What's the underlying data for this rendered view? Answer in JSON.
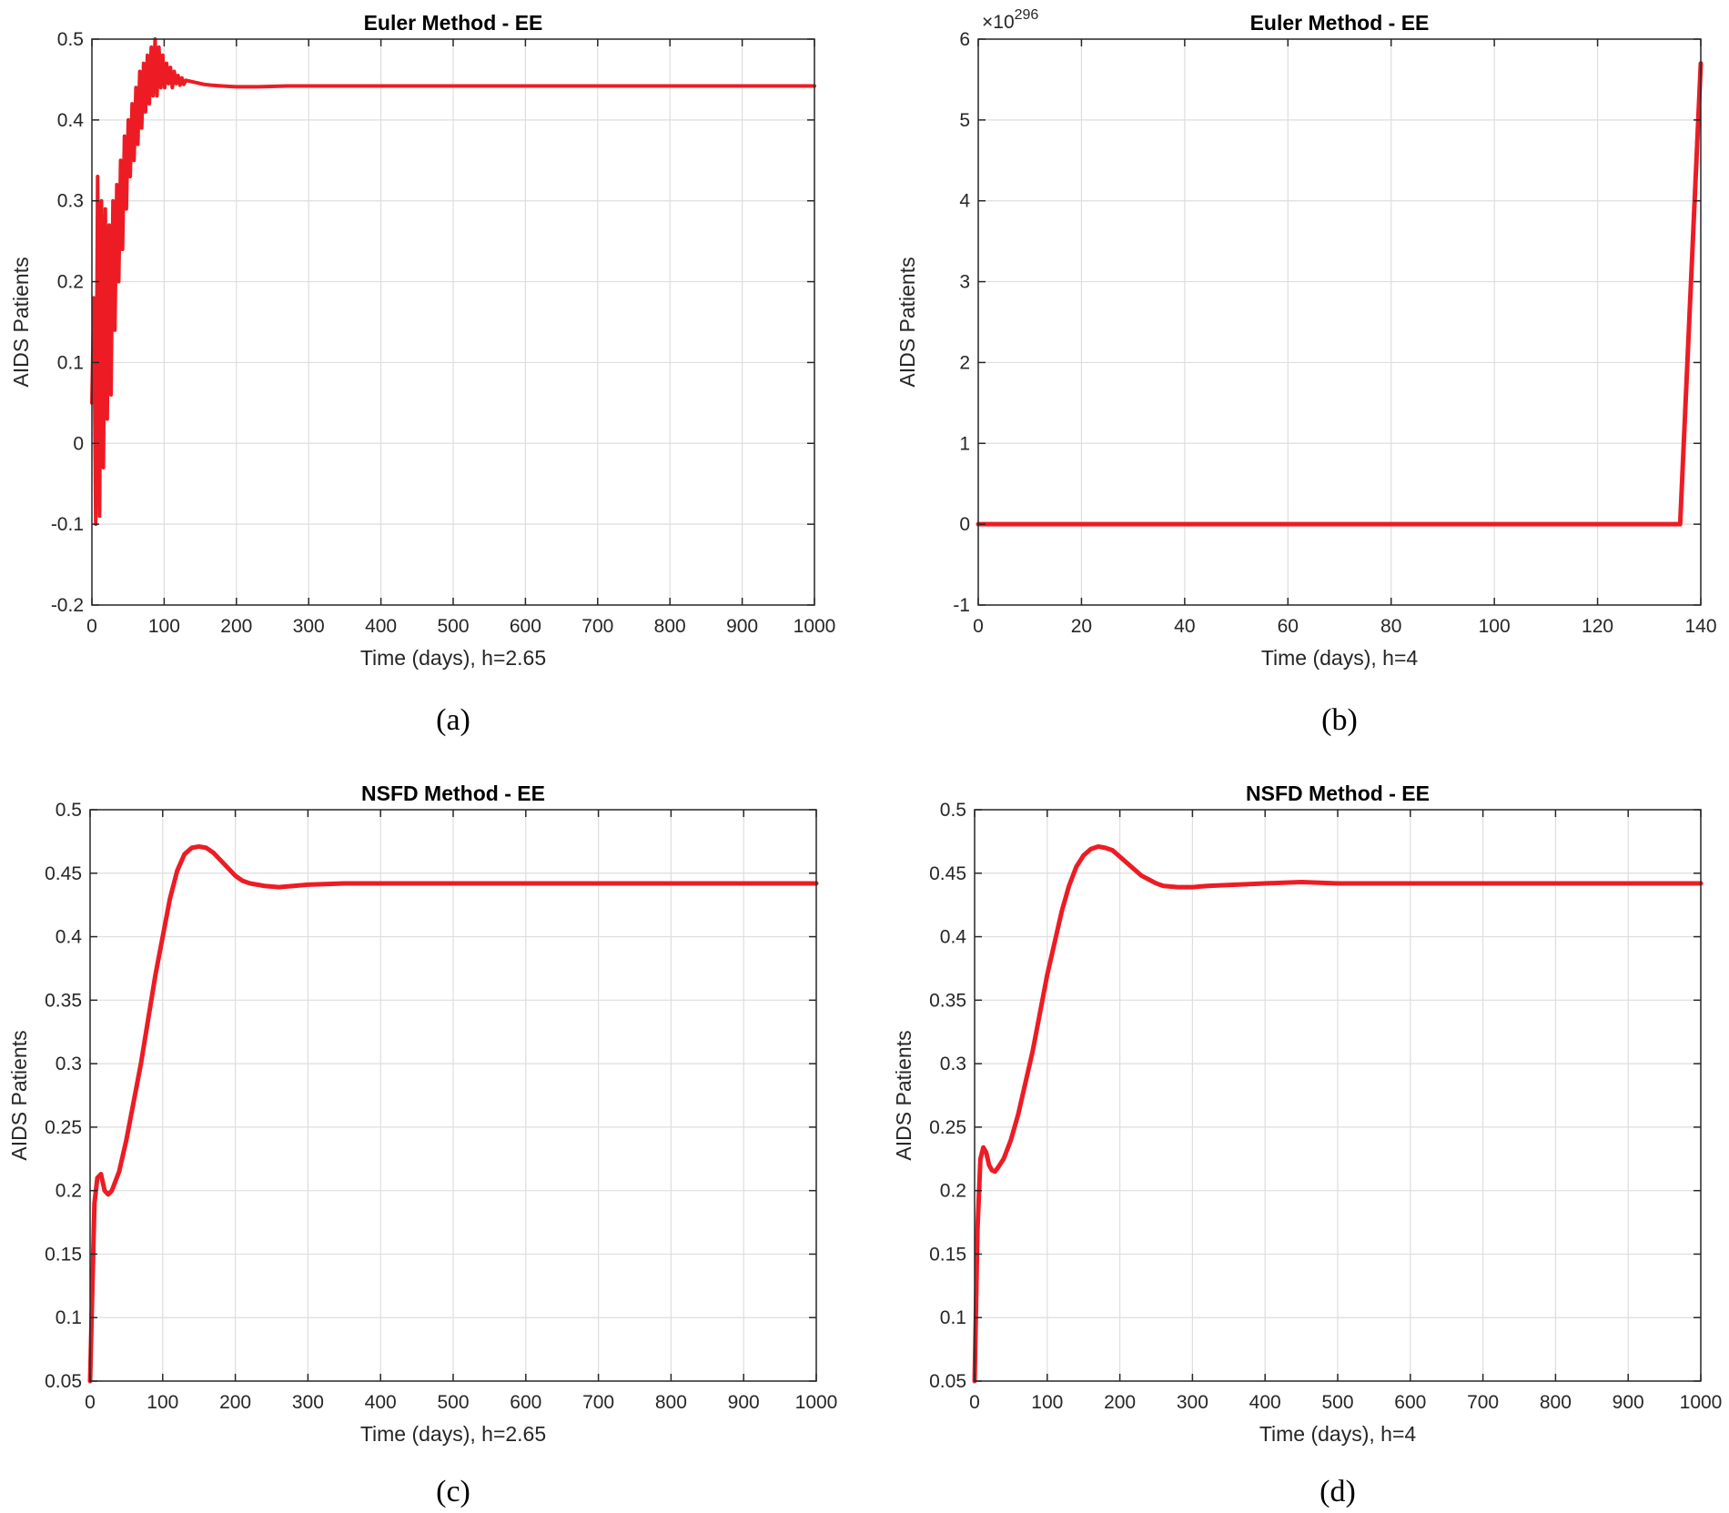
{
  "chart_data": [
    {
      "type": "line",
      "caption": "(a)",
      "title": "Euler Method - EE",
      "xlabel": "Time (days), h=2.65",
      "ylabel": "AIDS Patients",
      "xlim": [
        0,
        1000
      ],
      "ylim": [
        -0.2,
        0.5
      ],
      "xticks": [
        0,
        100,
        200,
        300,
        400,
        500,
        600,
        700,
        800,
        900,
        1000
      ],
      "yticks": [
        -0.2,
        -0.1,
        0,
        0.1,
        0.2,
        0.3,
        0.4,
        0.5
      ],
      "grid": true,
      "color": "#ed1c24",
      "series": [
        {
          "x": [
            0,
            2.65,
            5.3,
            7.95,
            10.6,
            13.25,
            15.9,
            18.55,
            21.2,
            23.85,
            26.5,
            29.15,
            31.8,
            34.45,
            37.1,
            39.75,
            42.4,
            45.05,
            47.7,
            50.35,
            53,
            55.65,
            58.3,
            60.95,
            63.6,
            66.25,
            68.9,
            71.55,
            74.2,
            76.85,
            79.5,
            82.15,
            84.8,
            87.45,
            90.1,
            92.75,
            95.4,
            98.05,
            100.7,
            103.35,
            106,
            108.65,
            111.3,
            113.95,
            116.6,
            119.25,
            121.9,
            124.55,
            127.2,
            129.85,
            135,
            145,
            155,
            165,
            180,
            200,
            230,
            270,
            320,
            400,
            500,
            600,
            700,
            800,
            900,
            1000
          ],
          "y": [
            0.05,
            0.18,
            -0.1,
            0.33,
            -0.09,
            0.3,
            -0.03,
            0.29,
            0.03,
            0.27,
            0.06,
            0.3,
            0.14,
            0.32,
            0.2,
            0.35,
            0.24,
            0.38,
            0.29,
            0.4,
            0.33,
            0.42,
            0.35,
            0.44,
            0.37,
            0.46,
            0.39,
            0.47,
            0.41,
            0.48,
            0.42,
            0.49,
            0.43,
            0.5,
            0.43,
            0.49,
            0.44,
            0.48,
            0.44,
            0.47,
            0.445,
            0.465,
            0.44,
            0.46,
            0.445,
            0.455,
            0.443,
            0.452,
            0.444,
            0.449,
            0.448,
            0.446,
            0.444,
            0.443,
            0.442,
            0.441,
            0.441,
            0.442,
            0.442,
            0.442,
            0.442,
            0.442,
            0.442,
            0.442,
            0.442,
            0.442
          ]
        }
      ]
    },
    {
      "type": "line",
      "caption": "(b)",
      "title": "Euler Method - EE",
      "xlabel": "Time (days), h=4",
      "ylabel": "AIDS Patients",
      "exponent_label": "×10",
      "exponent_power": "296",
      "xlim": [
        0,
        140
      ],
      "ylim": [
        -1,
        6
      ],
      "xticks": [
        0,
        20,
        40,
        60,
        80,
        100,
        120,
        140
      ],
      "yticks": [
        -1,
        0,
        1,
        2,
        3,
        4,
        5,
        6
      ],
      "grid": true,
      "color": "#ed1c24",
      "series": [
        {
          "x": [
            0,
            20,
            40,
            60,
            80,
            100,
            120,
            136,
            140
          ],
          "y": [
            0,
            0,
            0,
            0,
            0,
            0,
            0,
            0,
            5.7
          ]
        }
      ]
    },
    {
      "type": "line",
      "caption": "(c)",
      "title": "NSFD Method - EE",
      "xlabel": "Time (days), h=2.65",
      "ylabel": "AIDS Patients",
      "xlim": [
        0,
        1000
      ],
      "ylim": [
        0.05,
        0.5
      ],
      "xticks": [
        0,
        100,
        200,
        300,
        400,
        500,
        600,
        700,
        800,
        900,
        1000
      ],
      "yticks": [
        0.05,
        0.1,
        0.15,
        0.2,
        0.25,
        0.3,
        0.35,
        0.4,
        0.45,
        0.5
      ],
      "grid": true,
      "color": "#ed1c24",
      "series": [
        {
          "x": [
            0,
            3,
            6,
            10,
            15,
            20,
            25,
            30,
            40,
            50,
            60,
            70,
            80,
            90,
            100,
            110,
            120,
            130,
            140,
            150,
            160,
            170,
            180,
            190,
            200,
            210,
            220,
            240,
            260,
            280,
            300,
            350,
            400,
            450,
            500,
            600,
            700,
            800,
            900,
            1000
          ],
          "y": [
            0.05,
            0.12,
            0.19,
            0.21,
            0.213,
            0.2,
            0.197,
            0.2,
            0.215,
            0.24,
            0.27,
            0.3,
            0.335,
            0.37,
            0.4,
            0.43,
            0.452,
            0.465,
            0.47,
            0.471,
            0.47,
            0.466,
            0.46,
            0.454,
            0.448,
            0.444,
            0.442,
            0.44,
            0.439,
            0.44,
            0.441,
            0.442,
            0.442,
            0.442,
            0.442,
            0.442,
            0.442,
            0.442,
            0.442,
            0.442
          ]
        }
      ]
    },
    {
      "type": "line",
      "caption": "(d)",
      "title": "NSFD Method - EE",
      "xlabel": "Time (days), h=4",
      "ylabel": "AIDS Patients",
      "xlim": [
        0,
        1000
      ],
      "ylim": [
        0.05,
        0.5
      ],
      "xticks": [
        0,
        100,
        200,
        300,
        400,
        500,
        600,
        700,
        800,
        900,
        1000
      ],
      "yticks": [
        0.05,
        0.1,
        0.15,
        0.2,
        0.25,
        0.3,
        0.35,
        0.4,
        0.45,
        0.5
      ],
      "grid": true,
      "color": "#ed1c24",
      "series": [
        {
          "x": [
            0,
            4,
            8,
            12,
            16,
            20,
            24,
            28,
            32,
            40,
            50,
            60,
            70,
            80,
            90,
            100,
            110,
            120,
            130,
            140,
            150,
            160,
            170,
            180,
            190,
            200,
            210,
            220,
            230,
            240,
            250,
            260,
            280,
            300,
            320,
            360,
            400,
            450,
            500,
            600,
            700,
            800,
            900,
            1000
          ],
          "y": [
            0.05,
            0.17,
            0.225,
            0.234,
            0.23,
            0.22,
            0.216,
            0.215,
            0.218,
            0.225,
            0.24,
            0.26,
            0.285,
            0.31,
            0.34,
            0.37,
            0.395,
            0.42,
            0.44,
            0.455,
            0.464,
            0.469,
            0.471,
            0.47,
            0.468,
            0.463,
            0.458,
            0.453,
            0.448,
            0.445,
            0.442,
            0.44,
            0.439,
            0.439,
            0.44,
            0.441,
            0.442,
            0.443,
            0.442,
            0.442,
            0.442,
            0.442,
            0.442,
            0.442
          ]
        }
      ]
    }
  ]
}
